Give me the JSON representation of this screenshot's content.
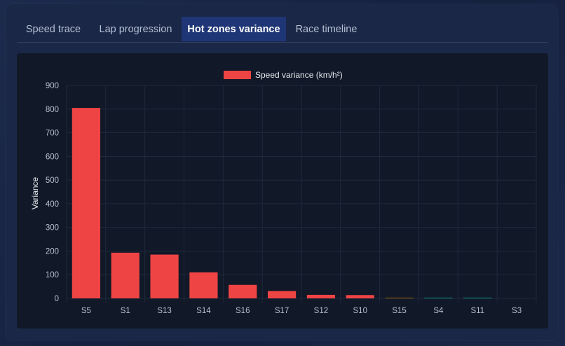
{
  "tabs": [
    {
      "label": "Speed trace",
      "active": false
    },
    {
      "label": "Lap progression",
      "active": false
    },
    {
      "label": "Hot zones variance",
      "active": true
    },
    {
      "label": "Race timeline",
      "active": false
    }
  ],
  "colors": {
    "bar": "#ef4444",
    "grid": "#1f2a3d",
    "tick_text": "#b8c0cc",
    "tab_active_bg": "#1f3676"
  },
  "chart_data": {
    "type": "bar",
    "categories": [
      "S5",
      "S1",
      "S13",
      "S14",
      "S16",
      "S17",
      "S12",
      "S10",
      "S15",
      "S4",
      "S11",
      "S3"
    ],
    "series": [
      {
        "name": "Speed variance (km/h²)",
        "values": [
          805,
          193,
          185,
          110,
          57,
          31,
          15,
          14,
          2,
          2,
          2,
          0
        ],
        "colors": [
          "#ef4444",
          "#ef4444",
          "#ef4444",
          "#ef4444",
          "#ef4444",
          "#ef4444",
          "#ef4444",
          "#ef4444",
          "#a16207",
          "#0d9488",
          "#0d9488",
          "#0d9488"
        ]
      }
    ],
    "ylabel": "Variance",
    "xlabel": "",
    "ylim": [
      0,
      900
    ],
    "yticks": [
      0,
      100,
      200,
      300,
      400,
      500,
      600,
      700,
      800,
      900
    ],
    "grid": true,
    "legend_position": "top-center"
  }
}
